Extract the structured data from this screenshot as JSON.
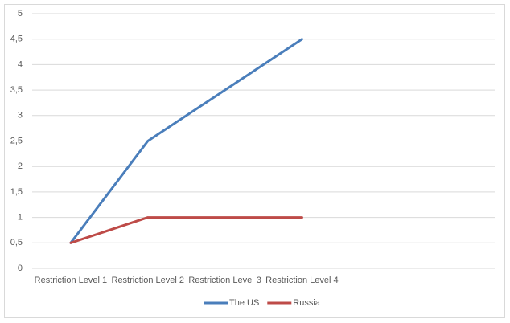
{
  "chart_data": {
    "type": "line",
    "categories": [
      "Restriction Level 1",
      "Restriction Level 2",
      "Restriction Level 3",
      "Restriction Level 4",
      null,
      null
    ],
    "series": [
      {
        "name": "The US",
        "color": "#4a7ebb",
        "values": [
          0.5,
          2.5,
          3.5,
          4.5,
          null,
          null
        ]
      },
      {
        "name": "Russia",
        "color": "#be4b48",
        "values": [
          0.5,
          1,
          1,
          1,
          null,
          null
        ]
      }
    ],
    "ylim": [
      0,
      5
    ],
    "yticks": [
      0,
      {
        "value": 0.5,
        "label": "0,5"
      },
      1,
      {
        "value": 1.5,
        "label": "1,5"
      },
      2,
      {
        "value": 2.5,
        "label": "2,5"
      },
      3,
      {
        "value": 3.5,
        "label": "3,5"
      },
      4,
      {
        "value": 4.5,
        "label": "4,5"
      },
      5
    ],
    "grid": true,
    "legend": "bottom"
  }
}
